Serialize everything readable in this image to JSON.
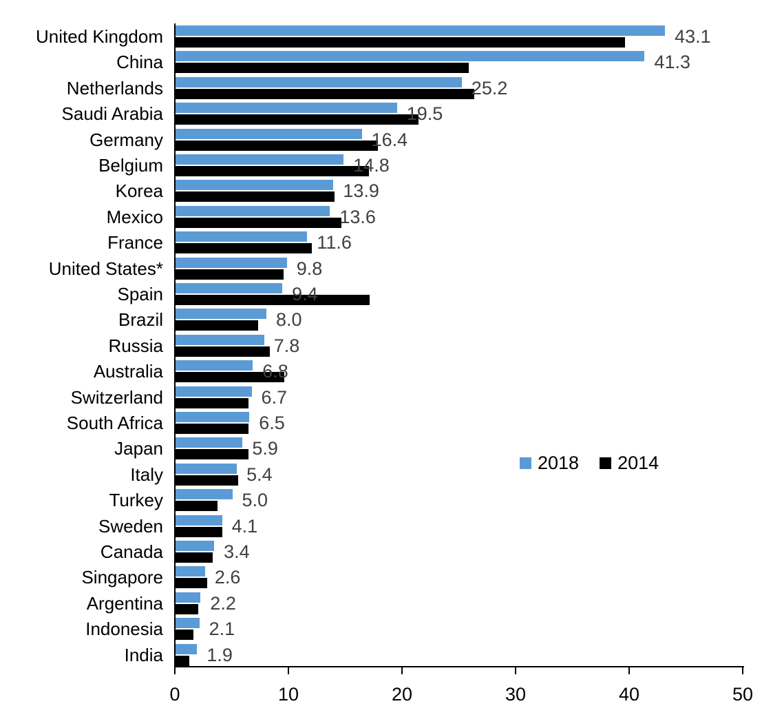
{
  "chart_data": {
    "type": "bar",
    "orientation": "horizontal",
    "title": "",
    "xlabel": "",
    "ylabel": "",
    "xlim": [
      0,
      50
    ],
    "xticks": [
      0,
      10,
      20,
      30,
      40,
      50
    ],
    "grid": false,
    "legend_position": "middle-right",
    "categories": [
      "United Kingdom",
      "China",
      "Netherlands",
      "Saudi Arabia",
      "Germany",
      "Belgium",
      "Korea",
      "Mexico",
      "France",
      "United States*",
      "Spain",
      "Brazil",
      "Russia",
      "Australia",
      "Switzerland",
      "South Africa",
      "Japan",
      "Italy",
      "Turkey",
      "Sweden",
      "Canada",
      "Singapore",
      "Argentina",
      "Indonesia",
      "India"
    ],
    "series": [
      {
        "name": "2018",
        "color": "#5B9BD5",
        "values": [
          43.1,
          41.3,
          25.2,
          19.5,
          16.4,
          14.8,
          13.9,
          13.6,
          11.6,
          9.8,
          9.4,
          8.0,
          7.8,
          6.8,
          6.7,
          6.5,
          5.9,
          5.4,
          5.0,
          4.1,
          3.4,
          2.6,
          2.2,
          2.1,
          1.9
        ],
        "data_labels": [
          "43.1",
          "41.3",
          "25.2",
          "19.5",
          "16.4",
          "14.8",
          "13.9",
          "13.6",
          "11.6",
          "9.8",
          "9.4",
          "8.0",
          "7.8",
          "6.8",
          "6.7",
          "6.5",
          "5.9",
          "5.4",
          "5.0",
          "4.1",
          "3.4",
          "2.6",
          "2.2",
          "2.1",
          "1.9"
        ]
      },
      {
        "name": "2014",
        "color": "#000000",
        "values": [
          39.6,
          25.8,
          26.3,
          21.4,
          17.8,
          17.0,
          14.0,
          14.6,
          12.0,
          9.5,
          17.1,
          7.3,
          8.3,
          9.6,
          6.4,
          6.4,
          6.4,
          5.5,
          3.7,
          4.1,
          3.3,
          2.8,
          2.0,
          1.6,
          1.2
        ],
        "data_labels": []
      }
    ],
    "label_color": "#404040",
    "axis_color": "#000000"
  }
}
